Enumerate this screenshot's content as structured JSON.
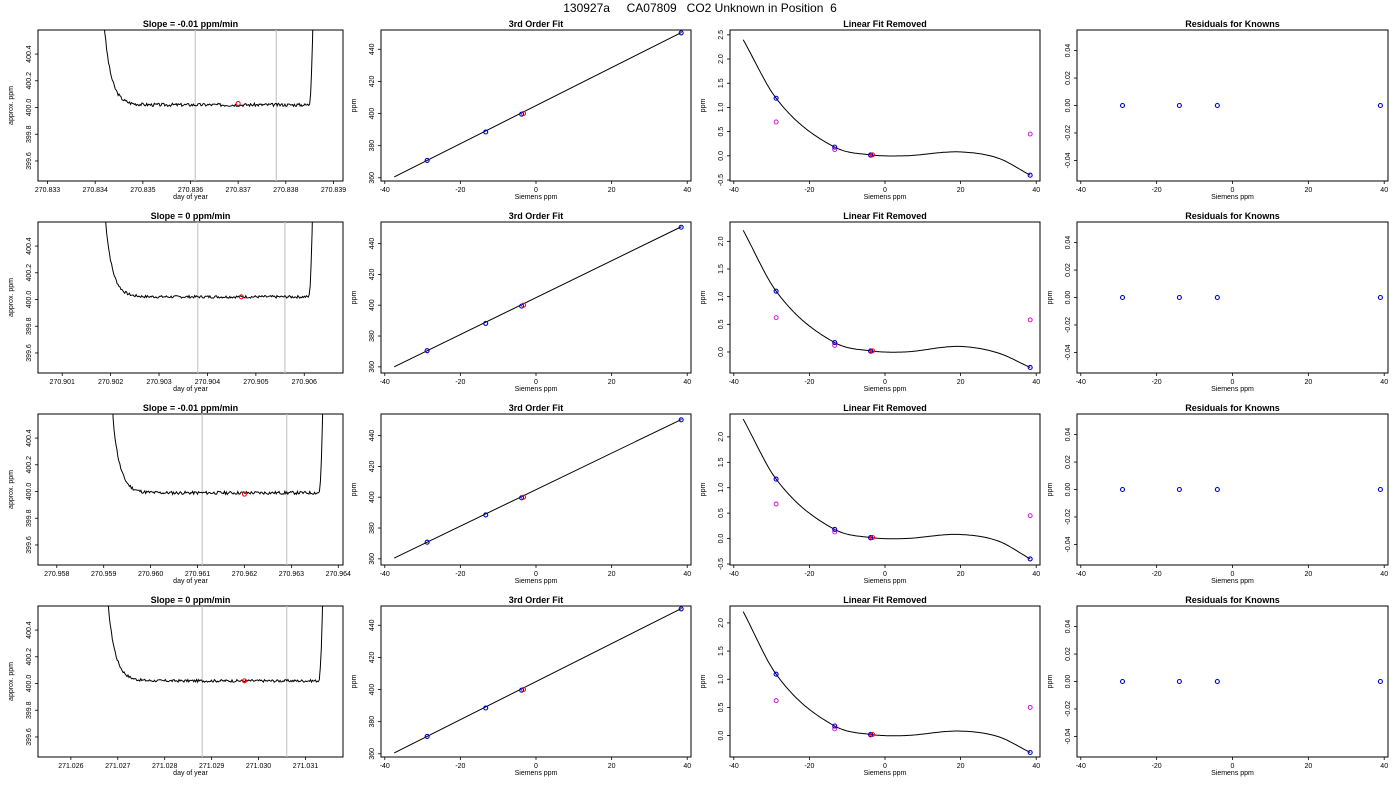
{
  "title": "130927a     CA07809   CO2 Unknown in Position  6",
  "colors": {
    "line": "#000000",
    "known_points": "#0000cc",
    "unknown_point": "#ff0000",
    "linear_removed_points": "#cc00cc",
    "bound_lines": "#c8c8c8"
  },
  "chart_data": [
    {
      "type": "line",
      "row": 1,
      "col": 1,
      "title": "Slope =  -0.01  ppm/min",
      "xlabel": "day of year",
      "ylabel": "approx. ppm",
      "xlim": [
        270.8328,
        270.8392
      ],
      "ylim": [
        399.45,
        400.58
      ],
      "xticks": [
        "270.833",
        "270.834",
        "270.835",
        "270.836",
        "270.837",
        "270.838",
        "270.839"
      ],
      "yticks": [
        "399.6",
        "399.8",
        "400.0",
        "400.2",
        "400.4"
      ],
      "bounds_x": [
        270.8361,
        270.8378
      ],
      "marker": {
        "x": 270.837,
        "y": 400.03
      },
      "trace": {
        "x_start": 270.8342,
        "x_end": 270.8386,
        "level": 400.02,
        "noise": 0.012,
        "seed": 3
      }
    },
    {
      "type": "scatter",
      "row": 1,
      "col": 2,
      "title": "3rd Order Fit",
      "xlabel": "Siemens ppm",
      "ylabel": "ppm",
      "xlim": [
        -41,
        41
      ],
      "ylim": [
        358,
        452
      ],
      "xticks": [
        "-40",
        "-20",
        "0",
        "20",
        "40"
      ],
      "yticks": [
        "360",
        "380",
        "400",
        "420",
        "440"
      ],
      "line": {
        "x": [
          -37.5,
          38.5
        ],
        "y": [
          360.5,
          450.5
        ]
      },
      "known": {
        "x": [
          -28.8,
          -13.3,
          -3.8,
          38.4
        ],
        "y": [
          370.8,
          388.5,
          399.6,
          450.2
        ]
      },
      "unknown": {
        "x": -3.3,
        "y": 400.0
      }
    },
    {
      "type": "scatter",
      "row": 1,
      "col": 3,
      "title": "Linear Fit Removed",
      "xlabel": "Siemens ppm",
      "ylabel": "ppm",
      "xlim": [
        -41,
        41
      ],
      "ylim": [
        -0.52,
        2.6
      ],
      "xticks": [
        "-40",
        "-20",
        "0",
        "20",
        "40"
      ],
      "yticks": [
        "-0.5",
        "0.0",
        "0.5",
        "1.0",
        "1.5",
        "2.0",
        "2.5"
      ],
      "curve": {
        "x": [
          -37.5,
          -28.8,
          -13.3,
          -3.8,
          5,
          20,
          30,
          38.4
        ],
        "y": [
          2.4,
          1.19,
          0.18,
          0.02,
          0.0,
          0.08,
          -0.05,
          -0.4
        ]
      },
      "known": {
        "x": [
          -28.8,
          -13.3,
          -3.8,
          38.4
        ],
        "y": [
          1.19,
          0.18,
          0.02,
          -0.4
        ]
      },
      "linear": {
        "x": [
          -28.8,
          -13.3,
          -3.8,
          38.4
        ],
        "y": [
          0.7,
          0.13,
          0.01,
          0.45
        ]
      },
      "unknown": {
        "x": -3.3,
        "y": 0.02
      }
    },
    {
      "type": "scatter",
      "row": 1,
      "col": 4,
      "title": "Residuals for Knowns",
      "xlabel": "Siemens ppm",
      "ylabel": "",
      "xlim": [
        -41,
        41
      ],
      "ylim": [
        -0.055,
        0.055
      ],
      "xticks": [
        "-40",
        "-20",
        "0",
        "20",
        "40"
      ],
      "yticks": [
        "-0.04",
        "-0.02",
        "0.00",
        "0.02",
        "0.04"
      ],
      "known": {
        "x": [
          -29,
          -14,
          -4,
          39
        ],
        "y": [
          0,
          0,
          0,
          0
        ]
      }
    },
    {
      "type": "line",
      "row": 2,
      "col": 1,
      "title": "Slope =  0  ppm/min",
      "xlabel": "day of year",
      "ylabel": "approx. ppm",
      "xlim": [
        270.9005,
        270.9068
      ],
      "ylim": [
        399.45,
        400.58
      ],
      "xticks": [
        "270.901",
        "270.902",
        "270.903",
        "270.904",
        "270.905",
        "270.906"
      ],
      "yticks": [
        "399.6",
        "399.8",
        "400.0",
        "400.2",
        "400.4"
      ],
      "bounds_x": [
        270.9038,
        270.9056
      ],
      "marker": {
        "x": 270.9047,
        "y": 400.02
      },
      "trace": {
        "x_start": 270.9019,
        "x_end": 270.9062,
        "level": 400.02,
        "noise": 0.01,
        "seed": 7
      }
    },
    {
      "type": "scatter",
      "row": 2,
      "col": 2,
      "title": "3rd Order Fit",
      "xlabel": "Siemens ppm",
      "ylabel": "ppm",
      "xlim": [
        -41,
        41
      ],
      "ylim": [
        356,
        454
      ],
      "xticks": [
        "-40",
        "-20",
        "0",
        "20",
        "40"
      ],
      "yticks": [
        "360",
        "380",
        "400",
        "420",
        "440"
      ],
      "line": {
        "x": [
          -37.5,
          38.5
        ],
        "y": [
          360.0,
          451.0
        ]
      },
      "known": {
        "x": [
          -28.8,
          -13.3,
          -3.8,
          38.4
        ],
        "y": [
          370.5,
          388.2,
          399.4,
          450.6
        ]
      },
      "unknown": {
        "x": -3.3,
        "y": 400.0
      }
    },
    {
      "type": "scatter",
      "row": 2,
      "col": 3,
      "title": "Linear Fit Removed",
      "xlabel": "Siemens ppm",
      "ylabel": "ppm",
      "xlim": [
        -41,
        41
      ],
      "ylim": [
        -0.38,
        2.35
      ],
      "xticks": [
        "-40",
        "-20",
        "0",
        "20",
        "40"
      ],
      "yticks": [
        "0.0",
        "0.5",
        "1.0",
        "1.5",
        "2.0"
      ],
      "curve": {
        "x": [
          -37.5,
          -28.8,
          -13.3,
          -3.8,
          5,
          20,
          30,
          38.4
        ],
        "y": [
          2.2,
          1.1,
          0.17,
          0.02,
          0.0,
          0.1,
          -0.02,
          -0.28
        ]
      },
      "known": {
        "x": [
          -28.8,
          -13.3,
          -3.8,
          38.4
        ],
        "y": [
          1.1,
          0.17,
          0.02,
          -0.28
        ]
      },
      "linear": {
        "x": [
          -28.8,
          -13.3,
          -3.8,
          38.4
        ],
        "y": [
          0.62,
          0.12,
          0.01,
          0.58
        ]
      },
      "unknown": {
        "x": -3.3,
        "y": 0.02
      }
    },
    {
      "type": "scatter",
      "row": 2,
      "col": 4,
      "title": "Residuals for Knowns",
      "xlabel": "Siemens ppm",
      "ylabel": "ppm",
      "xlim": [
        -41,
        41
      ],
      "ylim": [
        -0.055,
        0.055
      ],
      "xticks": [
        "-40",
        "-20",
        "0",
        "20",
        "40"
      ],
      "yticks": [
        "-0.04",
        "-0.02",
        "0.00",
        "0.02",
        "0.04"
      ],
      "known": {
        "x": [
          -29,
          -14,
          -4,
          39
        ],
        "y": [
          0,
          0,
          0,
          0
        ]
      }
    },
    {
      "type": "line",
      "row": 3,
      "col": 1,
      "title": "Slope =  -0.01  ppm/min",
      "xlabel": "day of year",
      "ylabel": "approx. ppm",
      "xlim": [
        270.9576,
        270.9641
      ],
      "ylim": [
        399.45,
        400.58
      ],
      "xticks": [
        "270.958",
        "270.959",
        "270.960",
        "270.961",
        "270.962",
        "270.963",
        "270.964"
      ],
      "yticks": [
        "399.6",
        "399.8",
        "400.0",
        "400.2",
        "400.4"
      ],
      "bounds_x": [
        270.9611,
        270.9629
      ],
      "marker": {
        "x": 270.962,
        "y": 399.98
      },
      "trace": {
        "x_start": 270.9592,
        "x_end": 270.9637,
        "level": 399.99,
        "noise": 0.012,
        "seed": 11
      }
    },
    {
      "type": "scatter",
      "row": 3,
      "col": 2,
      "title": "3rd Order Fit",
      "xlabel": "Siemens ppm",
      "ylabel": "ppm",
      "xlim": [
        -41,
        41
      ],
      "ylim": [
        356,
        454
      ],
      "xticks": [
        "-40",
        "-20",
        "0",
        "20",
        "40"
      ],
      "yticks": [
        "360",
        "380",
        "400",
        "420",
        "440"
      ],
      "line": {
        "x": [
          -37.5,
          38.5
        ],
        "y": [
          360.5,
          450.5
        ]
      },
      "known": {
        "x": [
          -28.8,
          -13.3,
          -3.8,
          38.4
        ],
        "y": [
          370.8,
          388.5,
          399.6,
          450.2
        ]
      },
      "unknown": {
        "x": -3.3,
        "y": 400.0
      }
    },
    {
      "type": "scatter",
      "row": 3,
      "col": 3,
      "title": "Linear Fit Removed",
      "xlabel": "Siemens ppm",
      "ylabel": "ppm",
      "xlim": [
        -41,
        41
      ],
      "ylim": [
        -0.52,
        2.45
      ],
      "xticks": [
        "-40",
        "-20",
        "0",
        "20",
        "40"
      ],
      "yticks": [
        "-0.5",
        "0.0",
        "0.5",
        "1.0",
        "1.5",
        "2.0"
      ],
      "curve": {
        "x": [
          -37.5,
          -28.8,
          -13.3,
          -3.8,
          5,
          20,
          30,
          38.4
        ],
        "y": [
          2.35,
          1.17,
          0.18,
          0.02,
          0.0,
          0.08,
          -0.05,
          -0.4
        ]
      },
      "known": {
        "x": [
          -28.8,
          -13.3,
          -3.8,
          38.4
        ],
        "y": [
          1.17,
          0.18,
          0.02,
          -0.4
        ]
      },
      "linear": {
        "x": [
          -28.8,
          -13.3,
          -3.8,
          38.4
        ],
        "y": [
          0.68,
          0.13,
          0.01,
          0.45
        ]
      },
      "unknown": {
        "x": -3.3,
        "y": 0.02
      }
    },
    {
      "type": "scatter",
      "row": 3,
      "col": 4,
      "title": "Residuals for Knowns",
      "xlabel": "Siemens ppm",
      "ylabel": "ppm",
      "xlim": [
        -41,
        41
      ],
      "ylim": [
        -0.055,
        0.055
      ],
      "xticks": [
        "-40",
        "-20",
        "0",
        "20",
        "40"
      ],
      "yticks": [
        "-0.04",
        "-0.02",
        "0.00",
        "0.02",
        "0.04"
      ],
      "known": {
        "x": [
          -29,
          -14,
          -4,
          39
        ],
        "y": [
          0,
          0,
          0,
          0
        ]
      }
    },
    {
      "type": "line",
      "row": 4,
      "col": 1,
      "title": "Slope =  0  ppm/min",
      "xlabel": "day of year",
      "ylabel": "approx. ppm",
      "xlim": [
        271.0253,
        271.0318
      ],
      "ylim": [
        399.45,
        400.58
      ],
      "xticks": [
        "271.026",
        "271.027",
        "271.028",
        "271.029",
        "271.030",
        "271.031"
      ],
      "yticks": [
        "399.6",
        "399.8",
        "400.0",
        "400.2",
        "400.4"
      ],
      "bounds_x": [
        271.0288,
        271.0306
      ],
      "marker": {
        "x": 271.0297,
        "y": 400.02
      },
      "trace": {
        "x_start": 271.0268,
        "x_end": 271.0314,
        "level": 400.02,
        "noise": 0.01,
        "seed": 17
      }
    },
    {
      "type": "scatter",
      "row": 4,
      "col": 2,
      "title": "3rd Order Fit",
      "xlabel": "Siemens ppm",
      "ylabel": "ppm",
      "xlim": [
        -41,
        41
      ],
      "ylim": [
        358,
        452
      ],
      "xticks": [
        "-40",
        "-20",
        "0",
        "20",
        "40"
      ],
      "yticks": [
        "360",
        "380",
        "400",
        "420",
        "440"
      ],
      "line": {
        "x": [
          -37.5,
          38.5
        ],
        "y": [
          360.5,
          450.5
        ]
      },
      "known": {
        "x": [
          -28.8,
          -13.3,
          -3.8,
          38.4
        ],
        "y": [
          370.8,
          388.5,
          399.6,
          450.2
        ]
      },
      "unknown": {
        "x": -3.3,
        "y": 400.0
      }
    },
    {
      "type": "scatter",
      "row": 4,
      "col": 3,
      "title": "Linear Fit Removed",
      "xlabel": "Siemens ppm",
      "ylabel": "ppm",
      "xlim": [
        -41,
        41
      ],
      "ylim": [
        -0.38,
        2.3
      ],
      "xticks": [
        "-40",
        "-20",
        "0",
        "20",
        "40"
      ],
      "yticks": [
        "0.0",
        "0.5",
        "1.0",
        "1.5",
        "2.0"
      ],
      "curve": {
        "x": [
          -37.5,
          -28.8,
          -13.3,
          -3.8,
          5,
          20,
          30,
          38.4
        ],
        "y": [
          2.2,
          1.09,
          0.17,
          0.02,
          0.0,
          0.08,
          -0.02,
          -0.3
        ]
      },
      "known": {
        "x": [
          -28.8,
          -13.3,
          -3.8,
          38.4
        ],
        "y": [
          1.09,
          0.17,
          0.02,
          -0.3
        ]
      },
      "linear": {
        "x": [
          -28.8,
          -13.3,
          -3.8,
          38.4
        ],
        "y": [
          0.62,
          0.12,
          0.01,
          0.5
        ]
      },
      "unknown": {
        "x": -3.3,
        "y": 0.02
      }
    },
    {
      "type": "scatter",
      "row": 4,
      "col": 4,
      "title": "Residuals for Knowns",
      "xlabel": "Siemens ppm",
      "ylabel": "ppm",
      "xlim": [
        -41,
        41
      ],
      "ylim": [
        -0.055,
        0.055
      ],
      "xticks": [
        "-40",
        "-20",
        "0",
        "20",
        "40"
      ],
      "yticks": [
        "-0.04",
        "-0.02",
        "0.00",
        "0.02",
        "0.04"
      ],
      "known": {
        "x": [
          -29,
          -14,
          -4,
          39
        ],
        "y": [
          0,
          0,
          0,
          0
        ]
      }
    }
  ]
}
